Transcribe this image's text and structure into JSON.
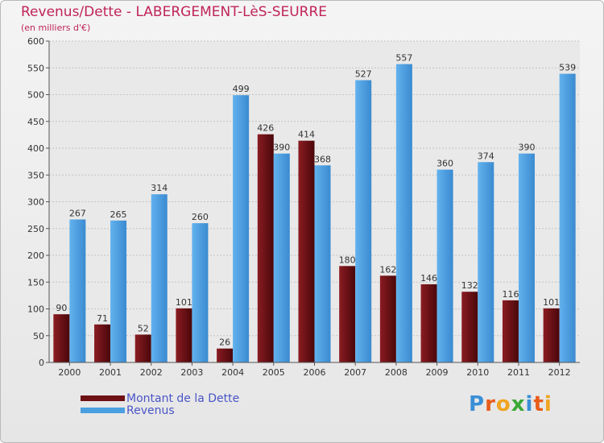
{
  "title": "Revenus/Dette - LABERGEMENT-LèS-SEURRE",
  "subtitle": "(en milliers d'€)",
  "logo": {
    "text": "Proxiti",
    "letters": [
      {
        "ch": "P",
        "color": "#3a8fd6"
      },
      {
        "ch": "r",
        "color": "#e85c1a"
      },
      {
        "ch": "o",
        "color": "#f0a420"
      },
      {
        "ch": "x",
        "color": "#3aa935"
      },
      {
        "ch": "i",
        "color": "#3a8fd6"
      },
      {
        "ch": "t",
        "color": "#e85c1a"
      },
      {
        "ch": "i",
        "color": "#f0a420"
      }
    ]
  },
  "colors": {
    "dette": "#6e1014",
    "revenus": "#4a9fe0"
  },
  "chart_data": {
    "type": "bar",
    "categories": [
      "2000",
      "2001",
      "2002",
      "2003",
      "2004",
      "2005",
      "2006",
      "2007",
      "2008",
      "2009",
      "2010",
      "2011",
      "2012"
    ],
    "series": [
      {
        "name": "Montant de la Dette",
        "values": [
          90,
          71,
          52,
          101,
          26,
          426,
          414,
          180,
          162,
          146,
          132,
          116,
          101
        ]
      },
      {
        "name": "Revenus",
        "values": [
          267,
          265,
          314,
          260,
          499,
          390,
          368,
          527,
          557,
          360,
          374,
          390,
          539
        ]
      }
    ],
    "ylim": [
      0,
      600
    ],
    "yticks": [
      0,
      50,
      100,
      150,
      200,
      250,
      300,
      350,
      400,
      450,
      500,
      550,
      600
    ],
    "grid": true,
    "legend_position": "bottom-left"
  }
}
